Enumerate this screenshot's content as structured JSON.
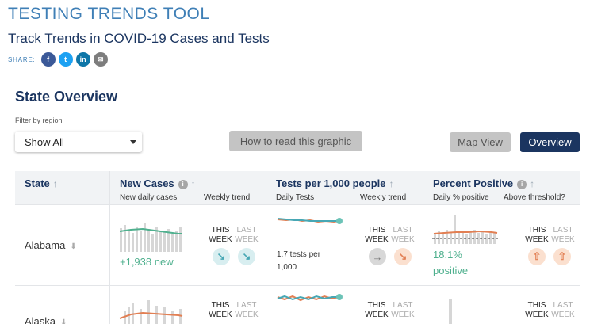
{
  "header": {
    "tool_title": "TESTING TRENDS TOOL",
    "subtitle": "Track Trends in COVID-19 Cases and Tests",
    "share_label": "SHARE:",
    "share_icons": [
      "facebook-icon",
      "twitter-icon",
      "linkedin-icon",
      "email-icon"
    ]
  },
  "overview": {
    "title": "State Overview",
    "filter_label": "Filter by region",
    "filter_value": "Show All",
    "how_to_read_label": "How to read this graphic",
    "map_view_label": "Map View",
    "overview_label": "Overview"
  },
  "table": {
    "columns": {
      "state": "State",
      "new_cases": "New Cases",
      "new_cases_daily": "New daily cases",
      "new_cases_weekly": "Weekly trend",
      "tests": "Tests per 1,000 people",
      "tests_daily": "Daily Tests",
      "tests_weekly": "Weekly trend",
      "percent": "Percent Positive",
      "percent_daily": "Daily % positive",
      "percent_threshold": "Above threshold?"
    },
    "this_week": "THIS\nWEEK",
    "last_week": "LAST\nWEEK",
    "rows": [
      {
        "state": "Alabama",
        "cases_text": "+1,938 new",
        "tests_text": "1.7 tests per 1,000",
        "percent_text": "18.1% positive",
        "cases_trend_icons": [
          "arrow-down-right-icon",
          "arrow-down-right-icon"
        ],
        "tests_trend_icons": [
          "arrow-right-icon",
          "arrow-down-right-icon"
        ],
        "percent_trend_icons": [
          "arrow-up-icon",
          "arrow-up-icon"
        ]
      },
      {
        "state": "Alaska"
      }
    ]
  },
  "colors": {
    "accent_blue": "#3f7fb6",
    "navy": "#1b3560",
    "teal": "#47a7b4",
    "salmon": "#e27f53",
    "green": "#4fb08e"
  }
}
